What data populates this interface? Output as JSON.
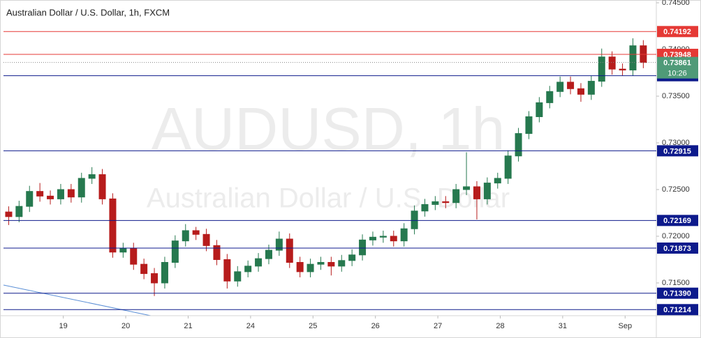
{
  "chart_data": {
    "type": "candlestick",
    "title": "Australian Dollar / U.S. Dollar, 1h, FXCM",
    "watermark": "AUDUSD, 1h",
    "watermark_subtitle": "Australian Dollar / U.S. Dollar",
    "up_color": "#26794f",
    "down_color": "#b71c1c",
    "grid": false,
    "xlim": [
      0,
      251
    ],
    "xticks": [
      {
        "value": 23,
        "label": "19"
      },
      {
        "value": 47,
        "label": "20"
      },
      {
        "value": 71,
        "label": "21"
      },
      {
        "value": 95,
        "label": "24"
      },
      {
        "value": 119,
        "label": "25"
      },
      {
        "value": 143,
        "label": "26"
      },
      {
        "value": 167,
        "label": "27"
      },
      {
        "value": 191,
        "label": "28"
      },
      {
        "value": 215,
        "label": "31"
      },
      {
        "value": 239,
        "label": "Sep"
      }
    ],
    "ylim": [
      0.71149,
      0.7453
    ],
    "yticks": [
      {
        "value": 0.745,
        "label": "0.74500"
      },
      {
        "value": 0.74,
        "label": "0.74000"
      },
      {
        "value": 0.735,
        "label": "0.73500"
      },
      {
        "value": 0.73,
        "label": "0.73000"
      },
      {
        "value": 0.725,
        "label": "0.72500"
      },
      {
        "value": 0.72,
        "label": "0.72000"
      },
      {
        "value": 0.715,
        "label": "0.71500"
      }
    ],
    "x": [
      2,
      6,
      10,
      14,
      18,
      22,
      26,
      30,
      34,
      38,
      42,
      46,
      50,
      54,
      58,
      62,
      66,
      70,
      74,
      78,
      82,
      86,
      90,
      94,
      98,
      102,
      106,
      110,
      114,
      118,
      122,
      126,
      130,
      134,
      138,
      142,
      146,
      150,
      154,
      158,
      162,
      166,
      170,
      174,
      178,
      182,
      186,
      190,
      194,
      198,
      202,
      206,
      210,
      214,
      218,
      222,
      226,
      230,
      234,
      238,
      242,
      246
    ],
    "open": [
      0.7226,
      0.7221,
      0.7232,
      0.7248,
      0.7243,
      0.724,
      0.725,
      0.7242,
      0.7262,
      0.7266,
      0.724,
      0.7183,
      0.7187,
      0.717,
      0.716,
      0.715,
      0.7172,
      0.7195,
      0.7206,
      0.7202,
      0.719,
      0.7175,
      0.7152,
      0.7162,
      0.7168,
      0.7176,
      0.7185,
      0.7197,
      0.7172,
      0.7162,
      0.717,
      0.7172,
      0.7168,
      0.7174,
      0.718,
      0.7196,
      0.7199,
      0.72,
      0.7195,
      0.7208,
      0.7227,
      0.7234,
      0.7237,
      0.7236,
      0.725,
      0.7253,
      0.724,
      0.7257,
      0.7262,
      0.7286,
      0.731,
      0.7328,
      0.7343,
      0.7355,
      0.7365,
      0.7358,
      0.7352,
      0.7366,
      0.7392,
      0.7379,
      0.7378,
      0.7404
    ],
    "high": [
      0.7232,
      0.7238,
      0.7254,
      0.7257,
      0.7249,
      0.7256,
      0.7256,
      0.7268,
      0.7274,
      0.7272,
      0.7246,
      0.7193,
      0.7193,
      0.7176,
      0.7166,
      0.7178,
      0.7201,
      0.7213,
      0.721,
      0.7208,
      0.7196,
      0.7181,
      0.7168,
      0.7174,
      0.7182,
      0.7191,
      0.7205,
      0.7203,
      0.7178,
      0.7176,
      0.7178,
      0.7178,
      0.718,
      0.7186,
      0.7202,
      0.7205,
      0.7206,
      0.7206,
      0.7214,
      0.7233,
      0.724,
      0.7243,
      0.7243,
      0.7256,
      0.729,
      0.7259,
      0.7263,
      0.7268,
      0.7292,
      0.7316,
      0.7334,
      0.7349,
      0.7361,
      0.7371,
      0.7371,
      0.7364,
      0.7372,
      0.7401,
      0.7398,
      0.7385,
      0.7412,
      0.741
    ],
    "low": [
      0.7212,
      0.7215,
      0.7226,
      0.7237,
      0.7234,
      0.7234,
      0.7236,
      0.7236,
      0.7256,
      0.7234,
      0.7177,
      0.7177,
      0.7164,
      0.7154,
      0.7136,
      0.7144,
      0.7166,
      0.7189,
      0.7196,
      0.7184,
      0.7169,
      0.7144,
      0.7146,
      0.7156,
      0.7162,
      0.717,
      0.7179,
      0.7166,
      0.7156,
      0.7156,
      0.7164,
      0.7158,
      0.7162,
      0.7168,
      0.7174,
      0.719,
      0.7193,
      0.7189,
      0.7189,
      0.7202,
      0.7221,
      0.7228,
      0.723,
      0.723,
      0.7244,
      0.7218,
      0.7234,
      0.7251,
      0.7256,
      0.728,
      0.7304,
      0.7322,
      0.7337,
      0.7349,
      0.7352,
      0.7344,
      0.7346,
      0.736,
      0.7373,
      0.7372,
      0.7372,
      0.738
    ],
    "close": [
      0.7221,
      0.7232,
      0.7248,
      0.7243,
      0.724,
      0.725,
      0.7242,
      0.7262,
      0.7266,
      0.724,
      0.7183,
      0.7187,
      0.717,
      0.716,
      0.715,
      0.7172,
      0.7195,
      0.7206,
      0.7202,
      0.719,
      0.7175,
      0.7152,
      0.7162,
      0.7168,
      0.7176,
      0.7185,
      0.7197,
      0.7172,
      0.7162,
      0.717,
      0.7172,
      0.7168,
      0.7174,
      0.718,
      0.7196,
      0.7199,
      0.72,
      0.7195,
      0.7208,
      0.7227,
      0.7234,
      0.7237,
      0.7236,
      0.725,
      0.7253,
      0.724,
      0.7257,
      0.7262,
      0.7286,
      0.731,
      0.7328,
      0.7343,
      0.7355,
      0.7365,
      0.7358,
      0.7352,
      0.7366,
      0.7392,
      0.7379,
      0.7378,
      0.7404,
      0.73861
    ],
    "levels": [
      {
        "value": 0.74192,
        "color": "#e53935"
      },
      {
        "value": 0.73948,
        "color": "#e53935"
      },
      {
        "value": 0.73719,
        "color": "#0d1a8c"
      },
      {
        "value": 0.72915,
        "color": "#0d1a8c"
      },
      {
        "value": 0.72169,
        "color": "#0d1a8c"
      },
      {
        "value": 0.71873,
        "color": "#0d1a8c"
      },
      {
        "value": 0.7139,
        "label": "0.71390",
        "color": "#0d1a8c"
      },
      {
        "value": 0.71214,
        "color": "#0d1a8c"
      }
    ],
    "current_price": 0.73861,
    "current_price_color": "#4f9a78",
    "countdown": "10:26"
  }
}
